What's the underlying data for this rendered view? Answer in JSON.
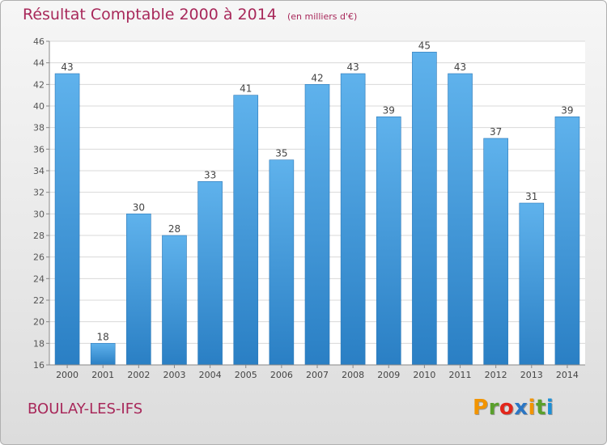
{
  "header": {
    "title": "Résultat Comptable 2000 à 2014",
    "unit": "(en milliers d'€)"
  },
  "footer": {
    "commune": "BOULAY-LES-IFS",
    "logo_letters": [
      "P",
      "r",
      "o",
      "x",
      "i",
      "t",
      "i"
    ],
    "logo_colors": [
      "#f29400",
      "#5aa02c",
      "#e2261b",
      "#2b76c4",
      "#f29400",
      "#5aa02c",
      "#1d8fd6"
    ]
  },
  "chart_data": {
    "type": "bar",
    "title": "Résultat Comptable 2000 à 2014",
    "subtitle": "(en milliers d'€)",
    "categories": [
      "2000",
      "2001",
      "2002",
      "2003",
      "2004",
      "2005",
      "2006",
      "2007",
      "2008",
      "2009",
      "2010",
      "2011",
      "2012",
      "2013",
      "2014"
    ],
    "values": [
      43,
      18,
      30,
      28,
      33,
      41,
      35,
      42,
      43,
      39,
      45,
      43,
      37,
      31,
      39
    ],
    "ylim": [
      16,
      46
    ],
    "yticks": [
      16,
      18,
      20,
      22,
      24,
      26,
      28,
      30,
      32,
      34,
      36,
      38,
      40,
      42,
      44,
      46
    ],
    "xlabel": "",
    "ylabel": "",
    "grid": true,
    "bar_color": "#3d95d8"
  }
}
